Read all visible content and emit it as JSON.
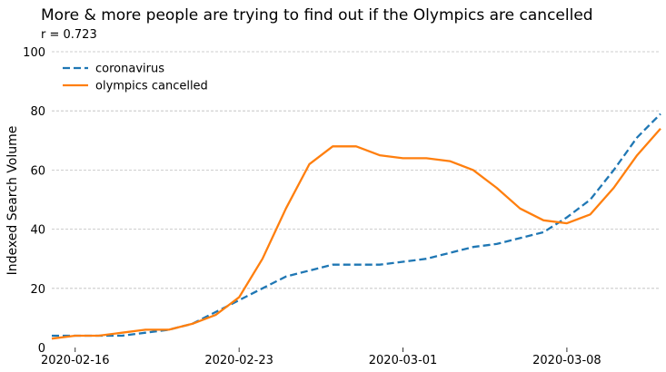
{
  "chart_data": {
    "type": "line",
    "title": "More & more people are trying to find out if the Olympics are cancelled",
    "subtitle": "r = 0.723",
    "xlabel": "",
    "ylabel": "Indexed Search Volume",
    "ylim": [
      0,
      100
    ],
    "yticks": [
      0,
      20,
      40,
      60,
      80,
      100
    ],
    "xlim": [
      "2020-02-15",
      "2020-03-12"
    ],
    "xticks": [
      "2020-02-16",
      "2020-02-23",
      "2020-03-01",
      "2020-03-08"
    ],
    "grid": true,
    "legend": "top-left",
    "x": [
      "2020-02-15",
      "2020-02-16",
      "2020-02-17",
      "2020-02-18",
      "2020-02-19",
      "2020-02-20",
      "2020-02-21",
      "2020-02-22",
      "2020-02-23",
      "2020-02-24",
      "2020-02-25",
      "2020-02-26",
      "2020-02-27",
      "2020-02-28",
      "2020-02-29",
      "2020-03-01",
      "2020-03-02",
      "2020-03-03",
      "2020-03-04",
      "2020-03-05",
      "2020-03-06",
      "2020-03-07",
      "2020-03-08",
      "2020-03-09",
      "2020-03-10",
      "2020-03-11",
      "2020-03-12"
    ],
    "series": [
      {
        "name": "coronavirus",
        "color": "#1f77b4",
        "style": "dashed",
        "values": [
          4,
          4,
          4,
          4,
          5,
          6,
          8,
          12,
          16,
          20,
          24,
          26,
          28,
          28,
          28,
          29,
          30,
          32,
          34,
          35,
          37,
          39,
          44,
          50,
          60,
          71,
          79
        ]
      },
      {
        "name": "olympics cancelled",
        "color": "#ff7f0e",
        "style": "solid",
        "values": [
          3,
          4,
          4,
          5,
          6,
          6,
          8,
          11,
          17,
          30,
          47,
          62,
          68,
          68,
          65,
          64,
          64,
          63,
          60,
          54,
          47,
          43,
          42,
          45,
          54,
          65,
          74
        ]
      }
    ]
  }
}
